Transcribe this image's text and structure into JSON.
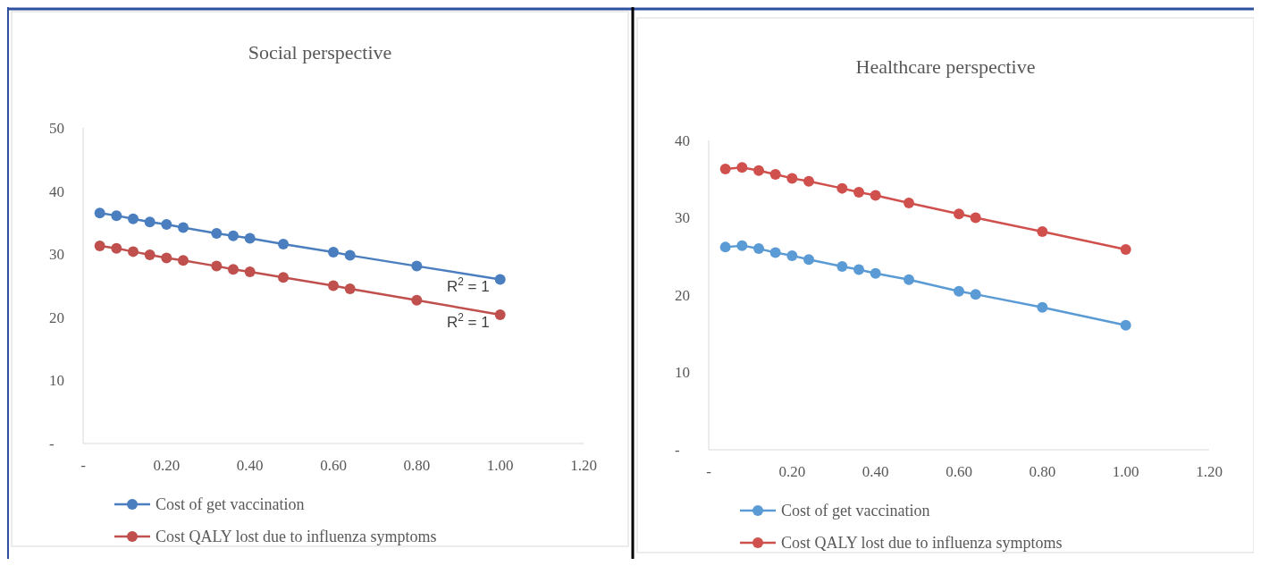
{
  "chart_data": [
    {
      "type": "line",
      "title": "Social perspective",
      "x": [
        0.04,
        0.08,
        0.12,
        0.16,
        0.2,
        0.24,
        0.32,
        0.36,
        0.4,
        0.48,
        0.6,
        0.64,
        0.8,
        1.0
      ],
      "series": [
        {
          "name": "Cost of get vaccination",
          "color": "#4a7ebf",
          "values": [
            36.5,
            36.1,
            35.6,
            35.1,
            34.7,
            34.2,
            33.3,
            32.9,
            32.5,
            31.6,
            30.3,
            29.8,
            28.1,
            26.0
          ]
        },
        {
          "name": "Cost QALY lost due to influenza symptoms",
          "color": "#c0504d",
          "values": [
            31.3,
            30.9,
            30.4,
            29.9,
            29.4,
            29.0,
            28.1,
            27.6,
            27.2,
            26.3,
            25.0,
            24.5,
            22.7,
            20.4
          ]
        }
      ],
      "xlim": [
        0,
        1.2
      ],
      "xticks": [
        {
          "value": 0,
          "label": "-"
        },
        {
          "value": 0.2,
          "label": "0.20"
        },
        {
          "value": 0.4,
          "label": "0.40"
        },
        {
          "value": 0.6,
          "label": "0.60"
        },
        {
          "value": 0.8,
          "label": "0.80"
        },
        {
          "value": 1.0,
          "label": "1.00"
        },
        {
          "value": 1.2,
          "label": "1.20"
        }
      ],
      "ylim": [
        0,
        50
      ],
      "yticks": [
        {
          "value": 0,
          "label": "-"
        },
        10,
        20,
        30,
        40,
        50
      ],
      "annotations": [
        {
          "text": "R$^{2}$ = 1",
          "x": 1.0,
          "y": 26.0
        },
        {
          "text": "R$^{2}$ = 1",
          "x": 1.0,
          "y": 20.4
        }
      ],
      "grid": false,
      "legend": "bottom",
      "marker": "circle",
      "line_style": "solid"
    },
    {
      "type": "line",
      "title": "Healthcare perspective",
      "x": [
        0.04,
        0.08,
        0.12,
        0.16,
        0.2,
        0.24,
        0.32,
        0.36,
        0.4,
        0.48,
        0.6,
        0.64,
        0.8,
        1.0
      ],
      "series": [
        {
          "name": "Cost of get vaccination",
          "color": "#5b9bd5",
          "values": [
            26.2,
            26.4,
            26.0,
            25.5,
            25.1,
            24.6,
            23.7,
            23.3,
            22.8,
            22.0,
            20.5,
            20.1,
            18.4,
            16.1
          ]
        },
        {
          "name": "Cost QALY lost due to influenza symptoms",
          "color": "#d0504d",
          "values": [
            36.3,
            36.5,
            36.1,
            35.6,
            35.1,
            34.7,
            33.8,
            33.3,
            32.9,
            31.9,
            30.5,
            30.0,
            28.2,
            25.9
          ]
        }
      ],
      "xlim": [
        0,
        1.2
      ],
      "xticks": [
        {
          "value": 0,
          "label": "-"
        },
        {
          "value": 0.2,
          "label": "0.20"
        },
        {
          "value": 0.4,
          "label": "0.40"
        },
        {
          "value": 0.6,
          "label": "0.60"
        },
        {
          "value": 0.8,
          "label": "0.80"
        },
        {
          "value": 1.0,
          "label": "1.00"
        },
        {
          "value": 1.2,
          "label": "1.20"
        }
      ],
      "ylim": [
        0,
        40
      ],
      "yticks": [
        {
          "value": 0,
          "label": "-"
        },
        10,
        20,
        30,
        40
      ],
      "grid": false,
      "legend": "bottom",
      "marker": "circle",
      "line_style": "solid"
    }
  ]
}
